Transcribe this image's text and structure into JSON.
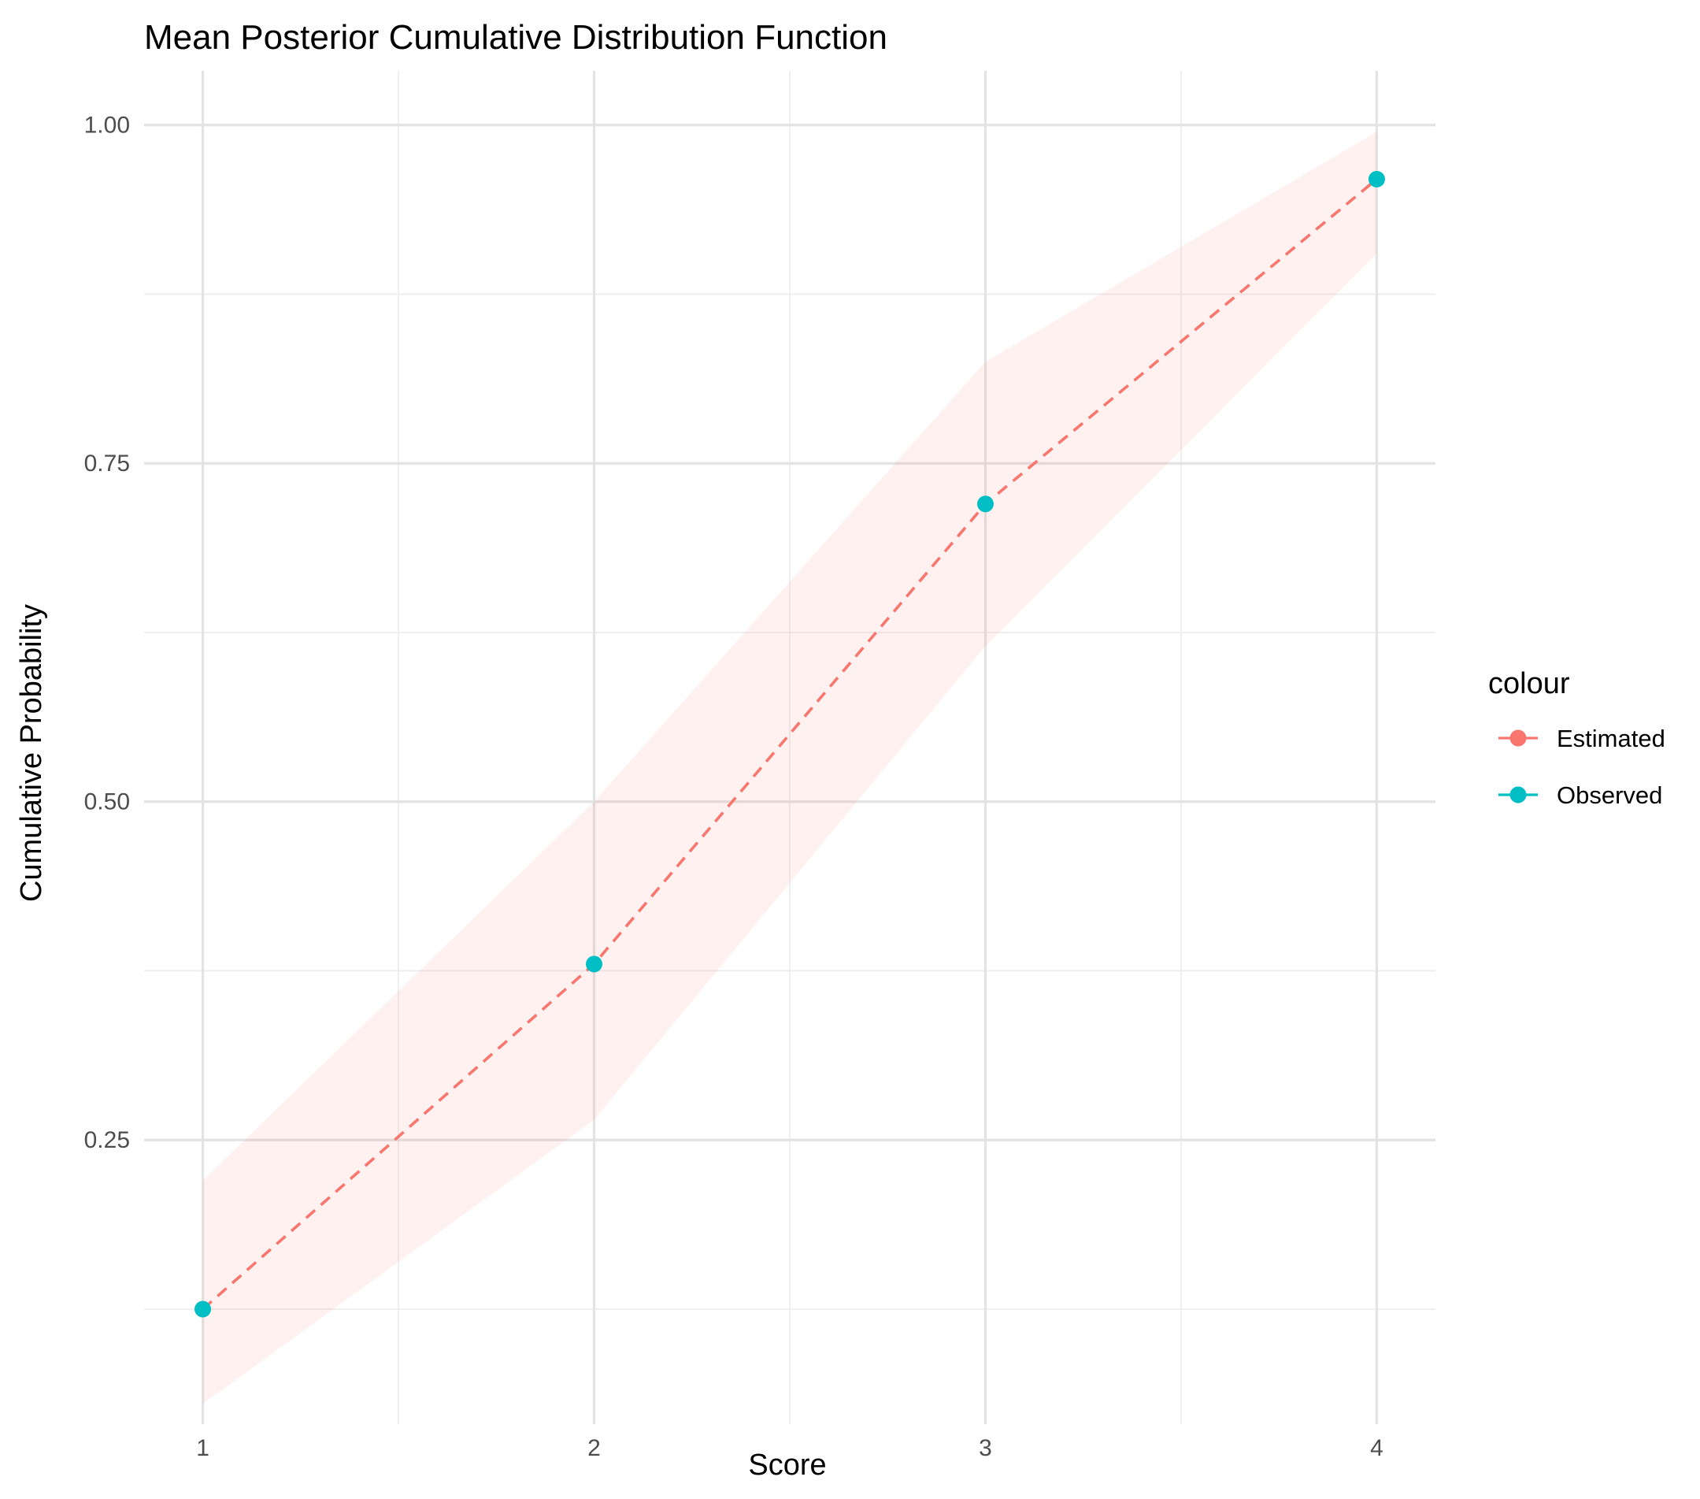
{
  "chart_data": {
    "type": "line",
    "title": "Mean Posterior Cumulative Distribution Function",
    "xlabel": "Score",
    "ylabel": "Cumulative Probability",
    "xlim": [
      0.85,
      4.15
    ],
    "ylim": [
      0.04,
      1.04
    ],
    "x_ticks": [
      1,
      2,
      3,
      4
    ],
    "x_tick_labels": [
      "1",
      "2",
      "3",
      "4"
    ],
    "y_ticks": [
      0.25,
      0.5,
      0.75,
      1.0
    ],
    "y_tick_labels": [
      "0.25",
      "0.50",
      "0.75",
      "1.00"
    ],
    "grid": true,
    "legend": {
      "title": "colour",
      "position": "right",
      "entries": [
        {
          "label": "Estimated",
          "color": "#F8766D"
        },
        {
          "label": "Observed",
          "color": "#00BFC4"
        }
      ]
    },
    "x": [
      1,
      2,
      3,
      4
    ],
    "series": [
      {
        "name": "Estimated",
        "values": [
          0.125,
          0.38,
          0.72,
          0.96
        ],
        "color": "#F8766D",
        "style": "dashed-line"
      },
      {
        "name": "Observed",
        "values": [
          0.125,
          0.38,
          0.72,
          0.96
        ],
        "color": "#00BFC4",
        "style": "points"
      }
    ],
    "ribbon": {
      "lower": [
        0.055,
        0.265,
        0.615,
        0.905
      ],
      "upper": [
        0.22,
        0.5,
        0.825,
        0.995
      ],
      "color": "#F8766D",
      "opacity": 0.1
    }
  }
}
